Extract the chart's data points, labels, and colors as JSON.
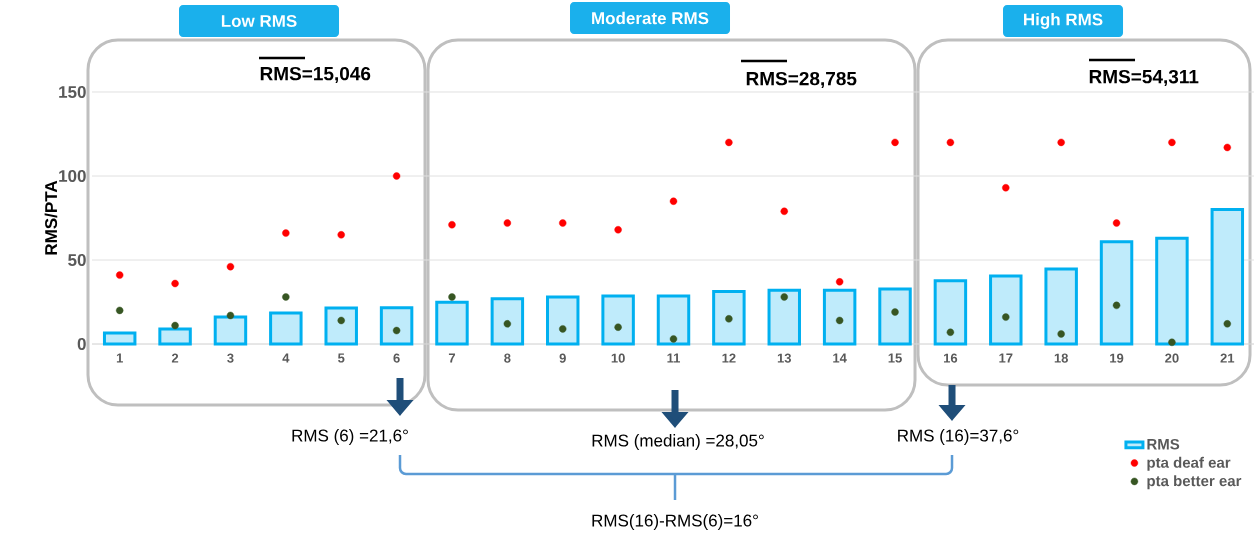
{
  "chart_data": {
    "type": "bar",
    "ylabel": "RMS/PTA",
    "categories": [
      "1",
      "2",
      "3",
      "4",
      "5",
      "6",
      "7",
      "8",
      "9",
      "10",
      "11",
      "12",
      "13",
      "14",
      "15",
      "16",
      "17",
      "18",
      "19",
      "20",
      "21"
    ],
    "series": [
      {
        "name": "RMS",
        "color": "#00b0f0",
        "values": [
          6.5,
          9,
          16,
          18.5,
          21.5,
          21.6,
          24.8,
          27,
          28,
          28.6,
          28.6,
          31.3,
          32,
          32,
          32.7,
          37.6,
          40.5,
          44.6,
          60.9,
          62.9,
          80
        ]
      },
      {
        "name": "pta deaf ear",
        "type": "scatter",
        "marker": "circle",
        "color": "#ff0000",
        "values": [
          41,
          36,
          46,
          66,
          65,
          100,
          71,
          72,
          72,
          68,
          85,
          120,
          79,
          37,
          120,
          120,
          93,
          120,
          72,
          120,
          117
        ]
      },
      {
        "name": "pta better ear",
        "type": "scatter",
        "marker": "circle",
        "color": "#375623",
        "values": [
          20,
          11,
          17,
          28,
          14,
          8,
          28,
          12,
          9,
          10,
          3,
          15,
          28,
          14,
          19,
          7,
          16,
          6,
          23,
          1,
          12
        ]
      }
    ],
    "ylim": [
      0,
      150
    ],
    "yticks": [
      0,
      50,
      100,
      150
    ],
    "grid": "y",
    "legend": "bottom right",
    "annotations": [
      "Low RMS",
      "Moderate RMS",
      "High RMS",
      "RMS=15,046",
      "RMS=28,785",
      "RMS=54,311",
      "RMS (6) =21,6°",
      "RMS (median) =28,05°",
      "RMS (16)=37,6°",
      "RMS(16)-RMS(6)=16°"
    ]
  }
}
